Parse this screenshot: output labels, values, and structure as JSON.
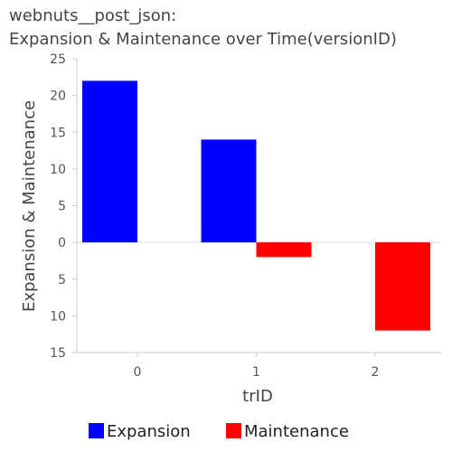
{
  "title_lines": [
    "webnuts__post_json:",
    "Expansion & Maintenance over Time(versionID)"
  ],
  "chart_data": {
    "type": "bar",
    "title": "webnuts__post_json: Expansion & Maintenance over Time(versionID)",
    "xlabel": "trID",
    "ylabel": "Expansion & Maintenance",
    "categories": [
      "0",
      "1",
      "2"
    ],
    "series": [
      {
        "name": "Expansion",
        "color": "#0000ff",
        "values": [
          22,
          14,
          0
        ]
      },
      {
        "name": "Maintenance",
        "color": "#ff0000",
        "values": [
          0,
          -2,
          -12
        ]
      }
    ],
    "ylim": [
      -15,
      25
    ],
    "y_tick_values": [
      25,
      20,
      15,
      10,
      5,
      0,
      -5,
      -10,
      -15
    ],
    "y_tick_labels": [
      "25",
      "20",
      "15",
      "10",
      "5",
      "0",
      "5",
      "10",
      "15"
    ],
    "grid": false,
    "legend_position": "bottom"
  }
}
